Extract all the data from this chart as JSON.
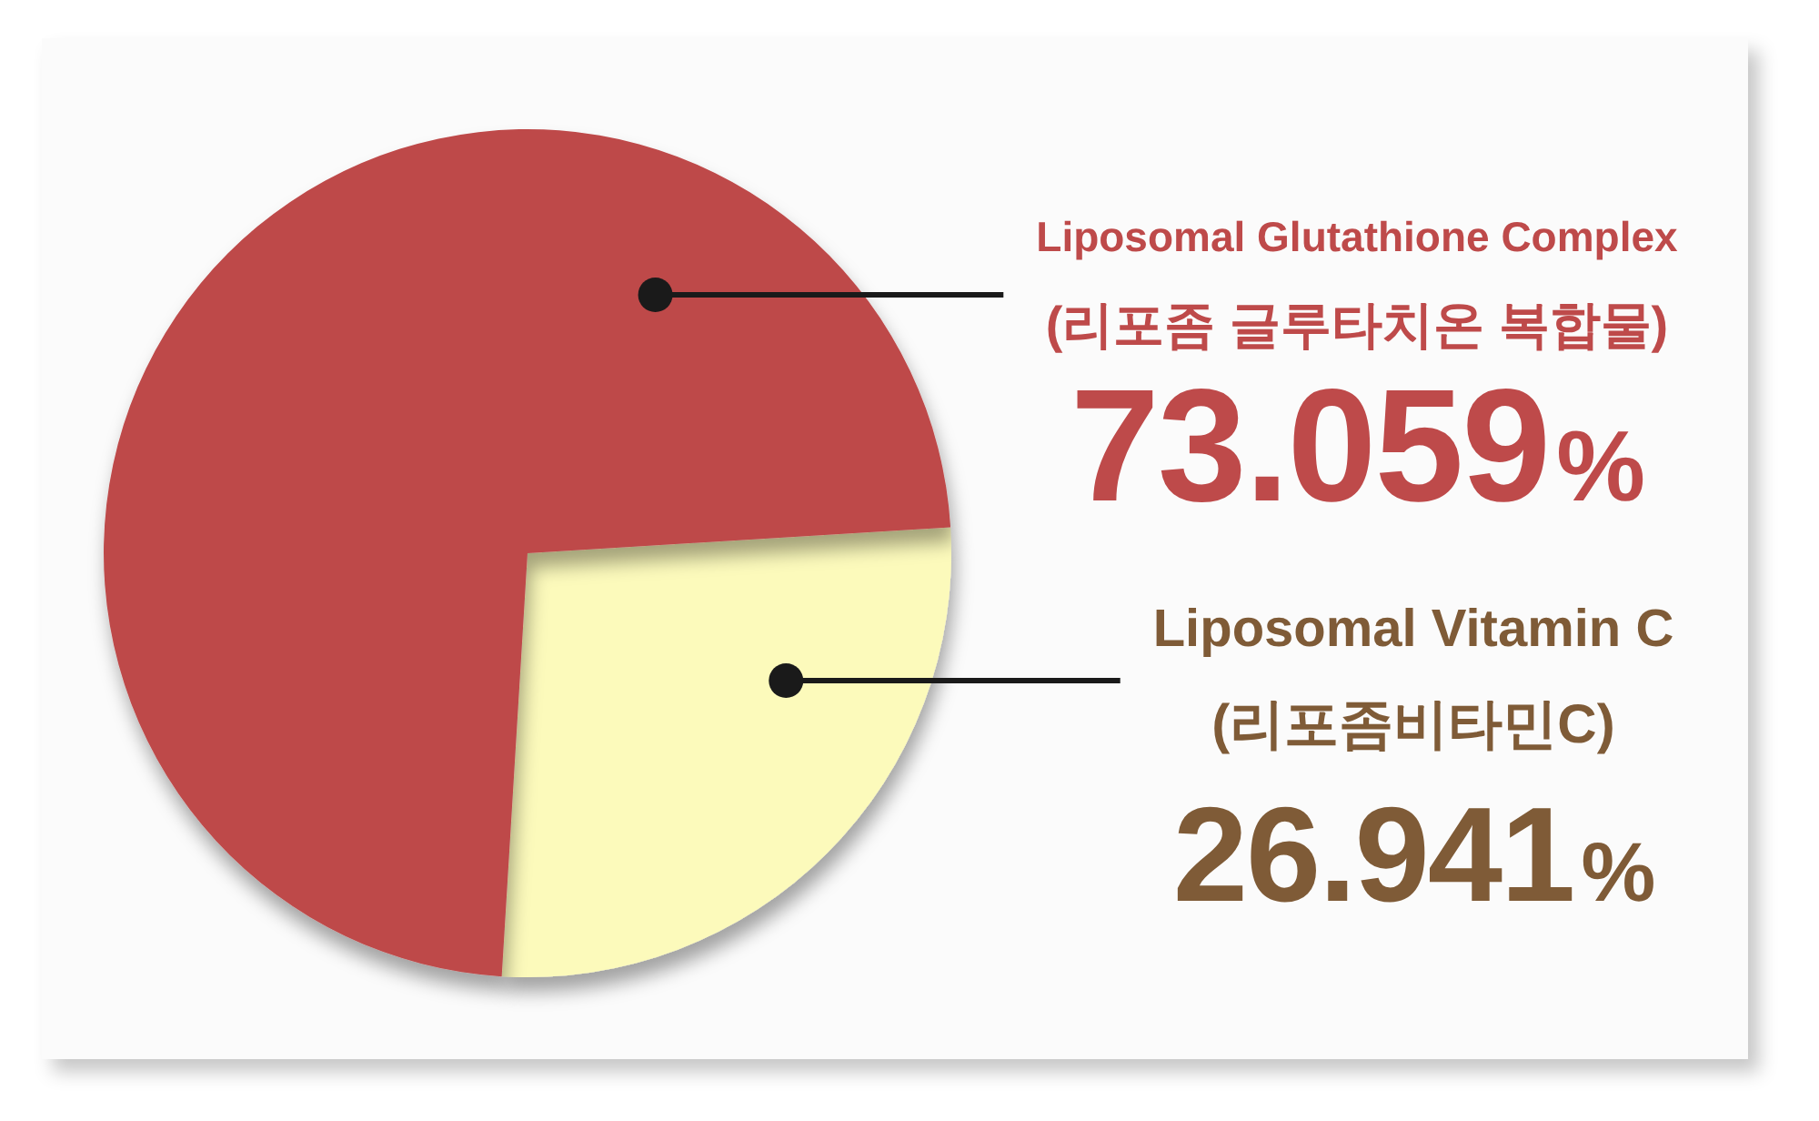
{
  "chart_data": {
    "type": "pie",
    "categories": [
      "Liposomal Glutathione Complex\n(리포좀 글루타치온 복합물)",
      "Liposomal Vitamin C\n(리포좀비타민C)"
    ],
    "values": [
      73.059,
      26.941
    ],
    "colors": [
      "#be4a4a",
      "#fcfabb"
    ],
    "value_labels": [
      "73.059%",
      "26.941%"
    ]
  }
}
